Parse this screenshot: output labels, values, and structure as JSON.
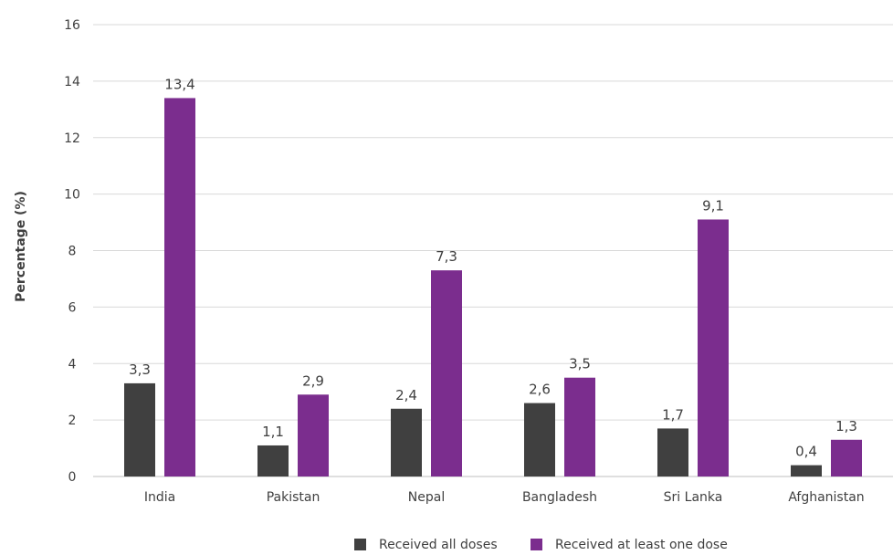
{
  "chart_data": {
    "type": "bar",
    "ylabel": "Percentage (%)",
    "xlabel": "",
    "ylim": [
      0,
      16
    ],
    "yticks": [
      0,
      2,
      4,
      6,
      8,
      10,
      12,
      14,
      16
    ],
    "grid": true,
    "legend_position": "bottom",
    "categories": [
      "India",
      "Pakistan",
      "Nepal",
      "Bangladesh",
      "Sri Lanka",
      "Afghanistan"
    ],
    "series": [
      {
        "name": "Received all doses",
        "color": "#404040",
        "values": [
          3.3,
          1.1,
          2.4,
          2.6,
          1.7,
          0.4
        ],
        "labels": [
          "3,3",
          "1,1",
          "2,4",
          "2,6",
          "1,7",
          "0,4"
        ]
      },
      {
        "name": "Received at least one dose",
        "color": "#7b2d8e",
        "values": [
          13.4,
          2.9,
          7.3,
          3.5,
          9.1,
          1.3
        ],
        "labels": [
          "13,4",
          "2,9",
          "7,3",
          "3,5",
          "9,1",
          "1,3"
        ]
      }
    ]
  }
}
